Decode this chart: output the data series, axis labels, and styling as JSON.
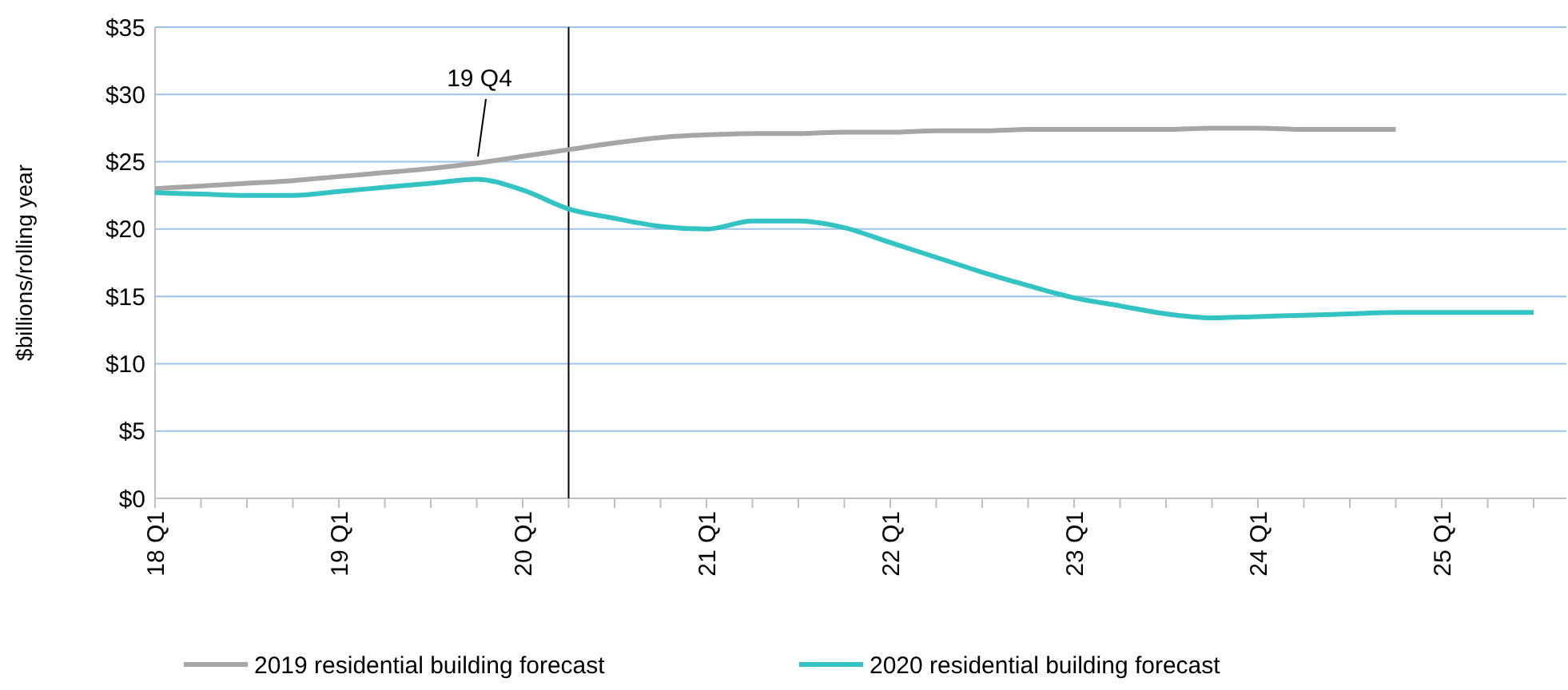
{
  "chart_data": {
    "type": "line",
    "ylabel": "$billions/rolling year",
    "categories": [
      "18 Q1",
      null,
      null,
      null,
      "19 Q1",
      null,
      null,
      null,
      "20 Q1",
      null,
      null,
      null,
      "21 Q1",
      null,
      null,
      null,
      "22 Q1",
      null,
      null,
      null,
      "23 Q1",
      null,
      null,
      null,
      "24 Q1",
      null,
      null,
      null,
      "25 Q1",
      null,
      null
    ],
    "ylim": [
      0,
      35
    ],
    "yticks": [
      {
        "value": 0,
        "label": "$0"
      },
      {
        "value": 5,
        "label": "$5"
      },
      {
        "value": 10,
        "label": "$10"
      },
      {
        "value": 15,
        "label": "$15"
      },
      {
        "value": 20,
        "label": "$20"
      },
      {
        "value": 25,
        "label": "$25"
      },
      {
        "value": 30,
        "label": "$30"
      },
      {
        "value": 35,
        "label": "$35"
      }
    ],
    "grid": "y",
    "legend": "bottom",
    "marker": "none",
    "line_style": "solid",
    "series": [
      {
        "name": "2019 residential building forecast",
        "color": "#a6a6a6",
        "values": [
          23.0,
          23.2,
          23.4,
          23.6,
          23.9,
          24.2,
          24.5,
          24.9,
          25.4,
          25.9,
          26.4,
          26.8,
          27.0,
          27.1,
          27.1,
          27.2,
          27.2,
          27.3,
          27.3,
          27.4,
          27.4,
          27.4,
          27.4,
          27.5,
          27.5,
          27.4,
          27.4,
          27.4,
          null,
          null,
          null
        ]
      },
      {
        "name": "2020 residential building forecast",
        "color": "#33c3c3",
        "values": [
          22.7,
          22.6,
          22.5,
          22.5,
          22.8,
          23.1,
          23.4,
          23.7,
          22.9,
          21.5,
          20.8,
          20.2,
          20.0,
          20.6,
          20.6,
          20.1,
          19.0,
          17.9,
          16.8,
          15.8,
          14.9,
          14.3,
          13.7,
          13.4,
          13.5,
          13.6,
          13.7,
          13.8,
          13.8,
          13.8,
          13.8
        ]
      }
    ],
    "annotations": [
      "19 Q4"
    ]
  }
}
